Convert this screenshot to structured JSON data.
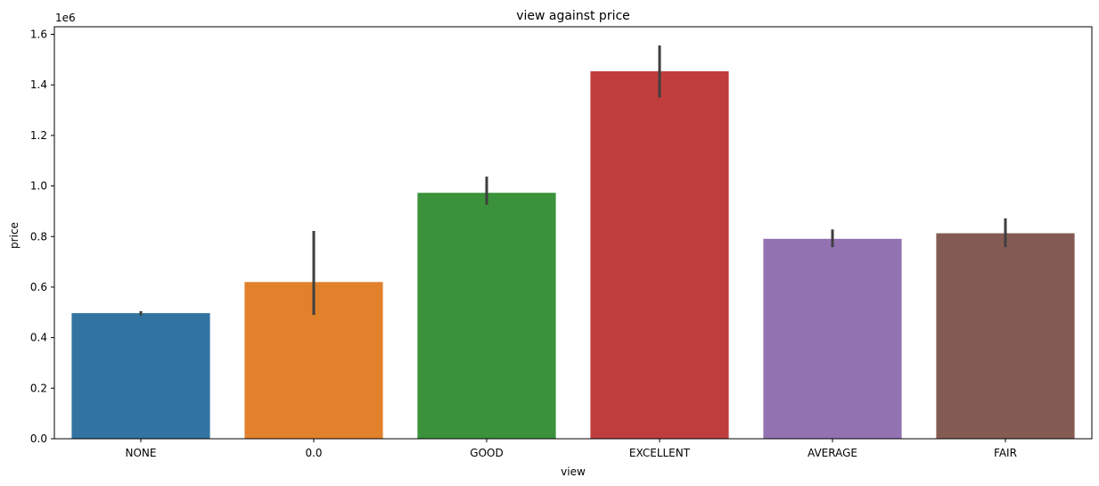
{
  "chart_data": {
    "type": "bar",
    "title": "view against price",
    "xlabel": "view",
    "ylabel": "price",
    "y_offset_label": "1e6",
    "categories": [
      "NONE",
      "0.0",
      "GOOD",
      "EXCELLENT",
      "AVERAGE",
      "FAIR"
    ],
    "values": [
      0.497,
      0.62,
      0.973,
      1.454,
      0.791,
      0.813
    ],
    "error_low": [
      0.488,
      0.49,
      0.926,
      1.35,
      0.758,
      0.758
    ],
    "error_high": [
      0.505,
      0.822,
      1.037,
      1.556,
      0.828,
      0.872
    ],
    "colors": [
      "#3274a1",
      "#e1812c",
      "#3a923a",
      "#c03d3e",
      "#9372b2",
      "#845b53"
    ],
    "ylim": [
      0,
      1.63
    ],
    "yticks": [
      0.0,
      0.2,
      0.4,
      0.6,
      0.8,
      1.0,
      1.2,
      1.4,
      1.6
    ],
    "ytick_labels": [
      "0.0",
      "0.2",
      "0.4",
      "0.6",
      "0.8",
      "1.0",
      "1.2",
      "1.4",
      "1.6"
    ],
    "grid": false,
    "legend": "none"
  }
}
